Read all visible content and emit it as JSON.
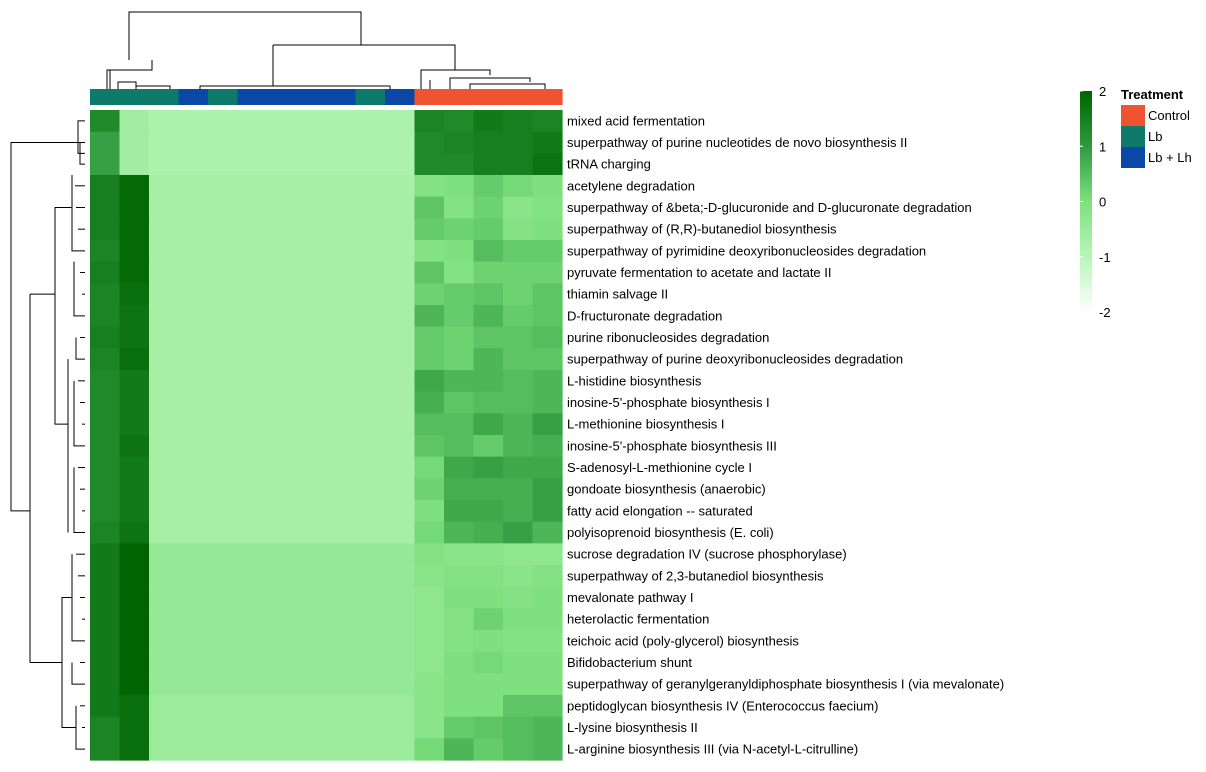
{
  "chart_data": {
    "type": "heatmap",
    "title": "",
    "color_scale": {
      "min": -2,
      "max": 2,
      "ticks": [
        2,
        1,
        0,
        -1,
        -2
      ],
      "colors": [
        "#ffffff",
        "#b8f5b8",
        "#7ee07e",
        "#2e9a3e",
        "#006400"
      ]
    },
    "annotation": {
      "title": "Treatment",
      "levels": [
        {
          "name": "Control",
          "color": "#f0532f"
        },
        {
          "name": "Lb",
          "color": "#0e7a6a"
        },
        {
          "name": "Lb + Lh",
          "color": "#0b47a7"
        }
      ],
      "columns": [
        "Lb",
        "Lb",
        "Lb",
        "Lb + Lh",
        "Lb",
        "Lb + Lh",
        "Lb + Lh",
        "Lb + Lh",
        "Lb + Lh",
        "Lb",
        "Lb + Lh",
        "Control",
        "Control",
        "Control",
        "Control",
        "Control"
      ]
    },
    "rows": [
      "mixed acid fermentation",
      "superpathway of purine nucleotides de novo biosynthesis II",
      "tRNA charging",
      "acetylene degradation",
      "superpathway of &beta;-D-glucuronide and D-glucuronate degradation",
      "superpathway of (R,R)-butanediol biosynthesis",
      "superpathway of pyrimidine deoxyribonucleosides degradation",
      "pyruvate fermentation to acetate and lactate II",
      "thiamin salvage II",
      "D-fructuronate degradation",
      "purine ribonucleosides degradation",
      "superpathway of purine deoxyribonucleosides degradation",
      "L-histidine biosynthesis",
      "inosine-5'-phosphate biosynthesis I",
      "L-methionine biosynthesis I",
      "inosine-5'-phosphate biosynthesis III",
      "S-adenosyl-L-methionine cycle I",
      "gondoate biosynthesis (anaerobic)",
      "fatty acid elongation -- saturated",
      "polyisoprenoid biosynthesis (E. coli)",
      "sucrose degradation IV (sucrose phosphorylase)",
      "superpathway of 2,3-butanediol biosynthesis",
      "mevalonate pathway I",
      "heterolactic fermentation",
      "teichoic acid (poly-glycerol) biosynthesis",
      "Bifidobacterium shunt",
      "superpathway of geranylgeranyldiphosphate biosynthesis I (via mevalonate)",
      "peptidoglycan biosynthesis IV (Enterococcus faecium)",
      "L-lysine biosynthesis II",
      "L-arginine biosynthesis III (via N-acetyl-L-citrulline)"
    ],
    "values": [
      [
        1.3,
        -0.6,
        -0.8,
        -0.8,
        -0.8,
        -0.8,
        -0.8,
        -0.8,
        -0.8,
        -0.8,
        -0.8,
        1.4,
        1.3,
        1.6,
        1.5,
        1.4
      ],
      [
        0.9,
        -0.6,
        -0.8,
        -0.8,
        -0.8,
        -0.8,
        -0.8,
        -0.8,
        -0.8,
        -0.8,
        -0.8,
        1.3,
        1.4,
        1.5,
        1.5,
        1.6
      ],
      [
        0.9,
        -0.6,
        -0.8,
        -0.8,
        -0.8,
        -0.8,
        -0.8,
        -0.8,
        -0.8,
        -0.8,
        -0.8,
        1.3,
        1.3,
        1.5,
        1.5,
        1.7
      ],
      [
        1.5,
        1.9,
        -0.7,
        -0.7,
        -0.7,
        -0.7,
        -0.7,
        -0.7,
        -0.7,
        -0.7,
        -0.7,
        -0.1,
        0.0,
        0.3,
        0.1,
        0.0
      ],
      [
        1.5,
        1.9,
        -0.7,
        -0.7,
        -0.7,
        -0.7,
        -0.7,
        -0.7,
        -0.7,
        -0.7,
        -0.7,
        0.4,
        -0.1,
        0.2,
        -0.2,
        -0.1
      ],
      [
        1.5,
        1.9,
        -0.7,
        -0.7,
        -0.7,
        -0.7,
        -0.7,
        -0.7,
        -0.7,
        -0.7,
        -0.7,
        0.3,
        0.2,
        0.3,
        -0.1,
        0.0
      ],
      [
        1.4,
        1.9,
        -0.7,
        -0.7,
        -0.7,
        -0.7,
        -0.7,
        -0.7,
        -0.7,
        -0.7,
        -0.7,
        -0.1,
        0.0,
        0.5,
        0.3,
        0.3
      ],
      [
        1.5,
        1.9,
        -0.7,
        -0.7,
        -0.7,
        -0.7,
        -0.7,
        -0.7,
        -0.7,
        -0.7,
        -0.7,
        0.4,
        -0.1,
        0.2,
        0.2,
        0.2
      ],
      [
        1.4,
        1.8,
        -0.7,
        -0.7,
        -0.7,
        -0.7,
        -0.7,
        -0.7,
        -0.7,
        -0.7,
        -0.7,
        0.2,
        0.3,
        0.4,
        0.2,
        0.4
      ],
      [
        1.4,
        1.7,
        -0.7,
        -0.7,
        -0.7,
        -0.7,
        -0.7,
        -0.7,
        -0.7,
        -0.7,
        -0.7,
        0.6,
        0.3,
        0.6,
        0.3,
        0.4
      ],
      [
        1.5,
        1.7,
        -0.7,
        -0.7,
        -0.7,
        -0.7,
        -0.7,
        -0.7,
        -0.7,
        -0.7,
        -0.7,
        0.3,
        0.2,
        0.4,
        0.4,
        0.5
      ],
      [
        1.4,
        1.8,
        -0.7,
        -0.7,
        -0.7,
        -0.7,
        -0.7,
        -0.7,
        -0.7,
        -0.7,
        -0.7,
        0.3,
        0.2,
        0.6,
        0.4,
        0.4
      ],
      [
        1.3,
        1.6,
        -0.7,
        -0.7,
        -0.7,
        -0.7,
        -0.7,
        -0.7,
        -0.7,
        -0.7,
        -0.7,
        0.8,
        0.6,
        0.6,
        0.5,
        0.6
      ],
      [
        1.3,
        1.6,
        -0.7,
        -0.7,
        -0.7,
        -0.7,
        -0.7,
        -0.7,
        -0.7,
        -0.7,
        -0.7,
        0.7,
        0.4,
        0.5,
        0.5,
        0.6
      ],
      [
        1.3,
        1.6,
        -0.7,
        -0.7,
        -0.7,
        -0.7,
        -0.7,
        -0.7,
        -0.7,
        -0.7,
        -0.7,
        0.5,
        0.5,
        0.8,
        0.6,
        0.9
      ],
      [
        1.3,
        1.7,
        -0.7,
        -0.7,
        -0.7,
        -0.7,
        -0.7,
        -0.7,
        -0.7,
        -0.7,
        -0.7,
        0.4,
        0.5,
        0.3,
        0.6,
        0.7
      ],
      [
        1.3,
        1.6,
        -0.7,
        -0.7,
        -0.7,
        -0.7,
        -0.7,
        -0.7,
        -0.7,
        -0.7,
        -0.7,
        0.1,
        0.8,
        0.9,
        0.8,
        0.8
      ],
      [
        1.3,
        1.6,
        -0.7,
        -0.7,
        -0.7,
        -0.7,
        -0.7,
        -0.7,
        -0.7,
        -0.7,
        -0.7,
        0.2,
        0.7,
        0.7,
        0.7,
        0.9
      ],
      [
        1.3,
        1.6,
        -0.7,
        -0.7,
        -0.7,
        -0.7,
        -0.7,
        -0.7,
        -0.7,
        -0.7,
        -0.7,
        0.0,
        0.8,
        0.8,
        0.7,
        0.9
      ],
      [
        1.4,
        1.7,
        -0.7,
        -0.7,
        -0.7,
        -0.7,
        -0.7,
        -0.7,
        -0.7,
        -0.7,
        -0.7,
        0.1,
        0.6,
        0.7,
        0.9,
        0.6
      ],
      [
        1.6,
        2.0,
        -0.4,
        -0.4,
        -0.4,
        -0.4,
        -0.4,
        -0.4,
        -0.4,
        -0.4,
        -0.4,
        -0.1,
        -0.2,
        -0.2,
        -0.3,
        -0.3
      ],
      [
        1.6,
        2.0,
        -0.4,
        -0.4,
        -0.4,
        -0.4,
        -0.4,
        -0.4,
        -0.4,
        -0.4,
        -0.4,
        -0.2,
        -0.1,
        -0.1,
        -0.2,
        -0.1
      ],
      [
        1.6,
        2.0,
        -0.4,
        -0.4,
        -0.4,
        -0.4,
        -0.4,
        -0.4,
        -0.4,
        -0.4,
        -0.4,
        -0.3,
        0.0,
        0.0,
        -0.1,
        0.0
      ],
      [
        1.6,
        2.0,
        -0.4,
        -0.4,
        -0.4,
        -0.4,
        -0.4,
        -0.4,
        -0.4,
        -0.4,
        -0.4,
        -0.3,
        -0.1,
        0.2,
        0.0,
        0.0
      ],
      [
        1.6,
        2.0,
        -0.4,
        -0.4,
        -0.4,
        -0.4,
        -0.4,
        -0.4,
        -0.4,
        -0.4,
        -0.4,
        -0.3,
        -0.1,
        0.0,
        -0.1,
        -0.1
      ],
      [
        1.6,
        2.0,
        -0.4,
        -0.4,
        -0.4,
        -0.4,
        -0.4,
        -0.4,
        -0.4,
        -0.4,
        -0.4,
        -0.3,
        0.0,
        0.1,
        0.0,
        0.0
      ],
      [
        1.6,
        2.0,
        -0.4,
        -0.4,
        -0.4,
        -0.4,
        -0.4,
        -0.4,
        -0.4,
        -0.4,
        -0.4,
        -0.2,
        0.0,
        0.0,
        0.0,
        0.0
      ],
      [
        1.6,
        1.8,
        -0.5,
        -0.5,
        -0.5,
        -0.5,
        -0.5,
        -0.5,
        -0.5,
        -0.5,
        -0.5,
        -0.2,
        0.0,
        0.0,
        0.4,
        0.4
      ],
      [
        1.4,
        1.8,
        -0.5,
        -0.5,
        -0.5,
        -0.5,
        -0.5,
        -0.5,
        -0.5,
        -0.5,
        -0.5,
        -0.2,
        0.3,
        0.4,
        0.5,
        0.6
      ],
      [
        1.4,
        1.8,
        -0.5,
        -0.5,
        -0.5,
        -0.5,
        -0.5,
        -0.5,
        -0.5,
        -0.5,
        -0.5,
        0.1,
        0.6,
        0.3,
        0.5,
        0.6
      ]
    ]
  }
}
